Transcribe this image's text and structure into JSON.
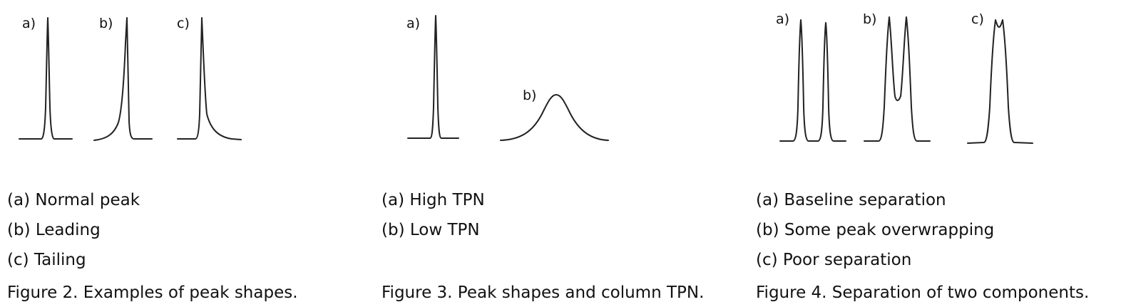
{
  "figures": [
    {
      "peak_labels": [
        "a)",
        "b)",
        "c)"
      ],
      "legend": [
        "(a) Normal peak",
        "(b) Leading",
        "(c) Tailing"
      ],
      "caption": "Figure 2. Examples of peak shapes."
    },
    {
      "peak_labels": [
        "a)",
        "b)"
      ],
      "legend": [
        "(a) High TPN",
        "(b) Low TPN"
      ],
      "caption": "Figure 3. Peak shapes and column TPN."
    },
    {
      "peak_labels": [
        "a)",
        "b)",
        "c)"
      ],
      "legend": [
        "(a) Baseline separation",
        "(b) Some peak overwrapping",
        "(c) Poor separation"
      ],
      "caption": "Figure 4. Separation of two components."
    }
  ]
}
